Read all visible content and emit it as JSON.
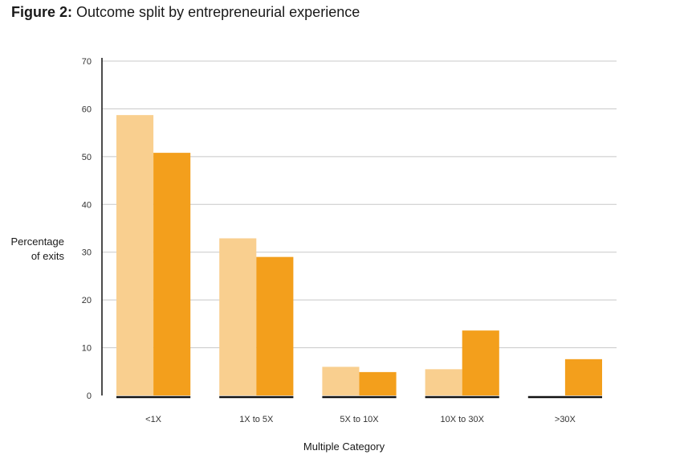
{
  "title": {
    "prefix": "Figure 2:",
    "text": "Outcome split by entrepreneurial experience"
  },
  "chart_data": {
    "type": "bar",
    "title": "Figure 2: Outcome split by entrepreneurial experience",
    "xlabel": "Multiple Category",
    "ylabel_lines": [
      "Percentage",
      "of exits"
    ],
    "categories": [
      "<1X",
      "1X to 5X",
      "5X to 10X",
      "10X to 30X",
      ">30X"
    ],
    "series": [
      {
        "values": [
          58.7,
          32.9,
          6.0,
          5.5,
          0
        ],
        "color": "#f9cf8f"
      },
      {
        "values": [
          50.8,
          29.0,
          4.9,
          13.6,
          7.6
        ],
        "color": "#f39f1c"
      }
    ],
    "ylim": [
      0,
      70
    ],
    "yticks": [
      0,
      10,
      20,
      30,
      40,
      50,
      60,
      70
    ],
    "grid": true,
    "legend": "none"
  }
}
